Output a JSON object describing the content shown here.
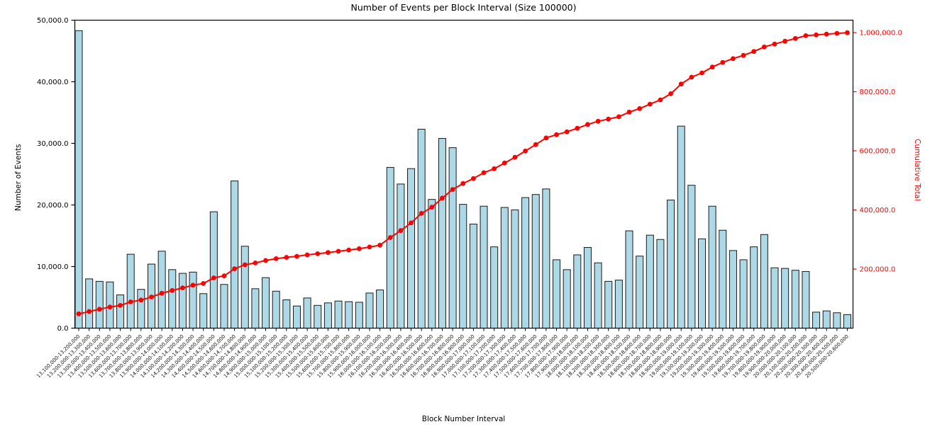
{
  "chart_data": {
    "type": "bar",
    "title": "Number of Events per Block Interval (Size 100000)",
    "xlabel": "Block Number Interval",
    "ylabel_left": "Number of Events",
    "ylabel_right": "Cumulative Total",
    "legend_position": "none",
    "grid": false,
    "x_tick_rotation": 45,
    "ylim_left": [
      0,
      50000
    ],
    "ylim_right": [
      0,
      1043000
    ],
    "left_axis_ticks": {
      "values": [
        0,
        10000,
        20000,
        30000,
        40000,
        50000
      ],
      "labels": [
        "0.0",
        "10,000.0",
        "20,000.0",
        "30,000.0",
        "40,000.0",
        "50,000.0"
      ]
    },
    "right_axis_ticks": {
      "values": [
        200000,
        400000,
        600000,
        800000,
        1000000
      ],
      "labels": [
        "200,000.0",
        "400,000.0",
        "600,000.0",
        "800,000.0",
        "1,000,000.0"
      ]
    },
    "colors": {
      "bar_fill": "#ADD8E6",
      "bar_edge": "#1a1a1a",
      "line": "#ff0000",
      "axis": "#000000"
    },
    "categories": [
      "13,100,000-13,200,000",
      "13,200,000-13,300,000",
      "13,300,000-13,400,000",
      "13,400,000-13,500,000",
      "13,500,000-13,600,000",
      "13,600,000-13,700,000",
      "13,700,000-13,800,000",
      "13,800,000-13,900,000",
      "13,900,000-14,000,000",
      "14,000,000-14,100,000",
      "14,100,000-14,200,000",
      "14,200,000-14,300,000",
      "14,300,000-14,400,000",
      "14,400,000-14,500,000",
      "14,500,000-14,600,000",
      "14,600,000-14,700,000",
      "14,700,000-14,800,000",
      "14,800,000-14,900,000",
      "14,900,000-15,000,000",
      "15,000,000-15,100,000",
      "15,100,000-15,200,000",
      "15,200,000-15,300,000",
      "15,300,000-15,400,000",
      "15,400,000-15,500,000",
      "15,500,000-15,600,000",
      "15,600,000-15,700,000",
      "15,700,000-15,800,000",
      "15,800,000-15,900,000",
      "15,900,000-16,000,000",
      "16,000,000-16,100,000",
      "16,100,000-16,200,000",
      "16,200,000-16,300,000",
      "16,300,000-16,400,000",
      "16,400,000-16,500,000",
      "16,500,000-16,600,000",
      "16,600,000-16,700,000",
      "16,700,000-16,800,000",
      "16,800,000-16,900,000",
      "16,900,000-17,000,000",
      "17,000,000-17,100,000",
      "17,100,000-17,200,000",
      "17,200,000-17,300,000",
      "17,300,000-17,400,000",
      "17,400,000-17,500,000",
      "17,500,000-17,600,000",
      "17,600,000-17,700,000",
      "17,700,000-17,800,000",
      "17,800,000-17,900,000",
      "17,900,000-18,000,000",
      "18,000,000-18,100,000",
      "18,100,000-18,200,000",
      "18,200,000-18,300,000",
      "18,300,000-18,400,000",
      "18,400,000-18,500,000",
      "18,500,000-18,600,000",
      "18,600,000-18,700,000",
      "18,700,000-18,800,000",
      "18,800,000-18,900,000",
      "18,900,000-19,000,000",
      "19,000,000-19,100,000",
      "19,100,000-19,200,000",
      "19,200,000-19,300,000",
      "19,300,000-19,400,000",
      "19,400,000-19,500,000",
      "19,500,000-19,600,000",
      "19,600,000-19,700,000",
      "19,700,000-19,800,000",
      "19,800,000-19,900,000",
      "19,900,000-20,000,000",
      "20,000,000-20,100,000",
      "20,100,000-20,200,000",
      "20,200,000-20,300,000",
      "20,300,000-20,400,000",
      "20,400,000-20,500,000",
      "20,500,000-20,600,000"
    ],
    "series": [
      {
        "name": "Number of Events",
        "type": "bar",
        "axis": "left",
        "values": [
          48300,
          8000,
          7600,
          7500,
          5400,
          12000,
          6300,
          10400,
          12500,
          9500,
          8900,
          9100,
          5600,
          18900,
          7100,
          23900,
          13300,
          6400,
          8200,
          6000,
          4600,
          3600,
          4900,
          3700,
          4100,
          4400,
          4300,
          4200,
          5700,
          6200,
          26100,
          23400,
          25900,
          32300,
          20900,
          30800,
          29300,
          20100,
          16900,
          19800,
          13200,
          19600,
          19200,
          21200,
          21700,
          22600,
          11100,
          9500,
          11900,
          13100,
          10600,
          7600,
          7800,
          15800,
          11700,
          15100,
          14400,
          20800,
          32800,
          23200,
          14500,
          19800,
          15900,
          12600,
          11100,
          13200,
          15200,
          9800,
          9700,
          9400,
          9200,
          2600,
          2800,
          2500,
          2200
        ]
      },
      {
        "name": "Cumulative Total",
        "type": "line",
        "axis": "right",
        "values": [
          48300,
          56300,
          63900,
          71400,
          76800,
          88800,
          95100,
          105500,
          118000,
          127500,
          136400,
          145500,
          151100,
          170000,
          177100,
          201000,
          214300,
          220700,
          228900,
          234900,
          239500,
          243100,
          248000,
          251700,
          255800,
          260200,
          264500,
          268700,
          274400,
          280600,
          306700,
          330100,
          356000,
          388300,
          409200,
          440000,
          469300,
          489400,
          506300,
          526100,
          539300,
          558900,
          578100,
          599300,
          621000,
          643600,
          654700,
          664200,
          676100,
          689200,
          699800,
          707400,
          715200,
          731000,
          742700,
          757800,
          772200,
          793000,
          825800,
          849000,
          863500,
          883300,
          899200,
          911800,
          922900,
          936100,
          951300,
          961100,
          970800,
          980200,
          989400,
          992000,
          994800,
          997300,
          999500
        ]
      }
    ]
  }
}
